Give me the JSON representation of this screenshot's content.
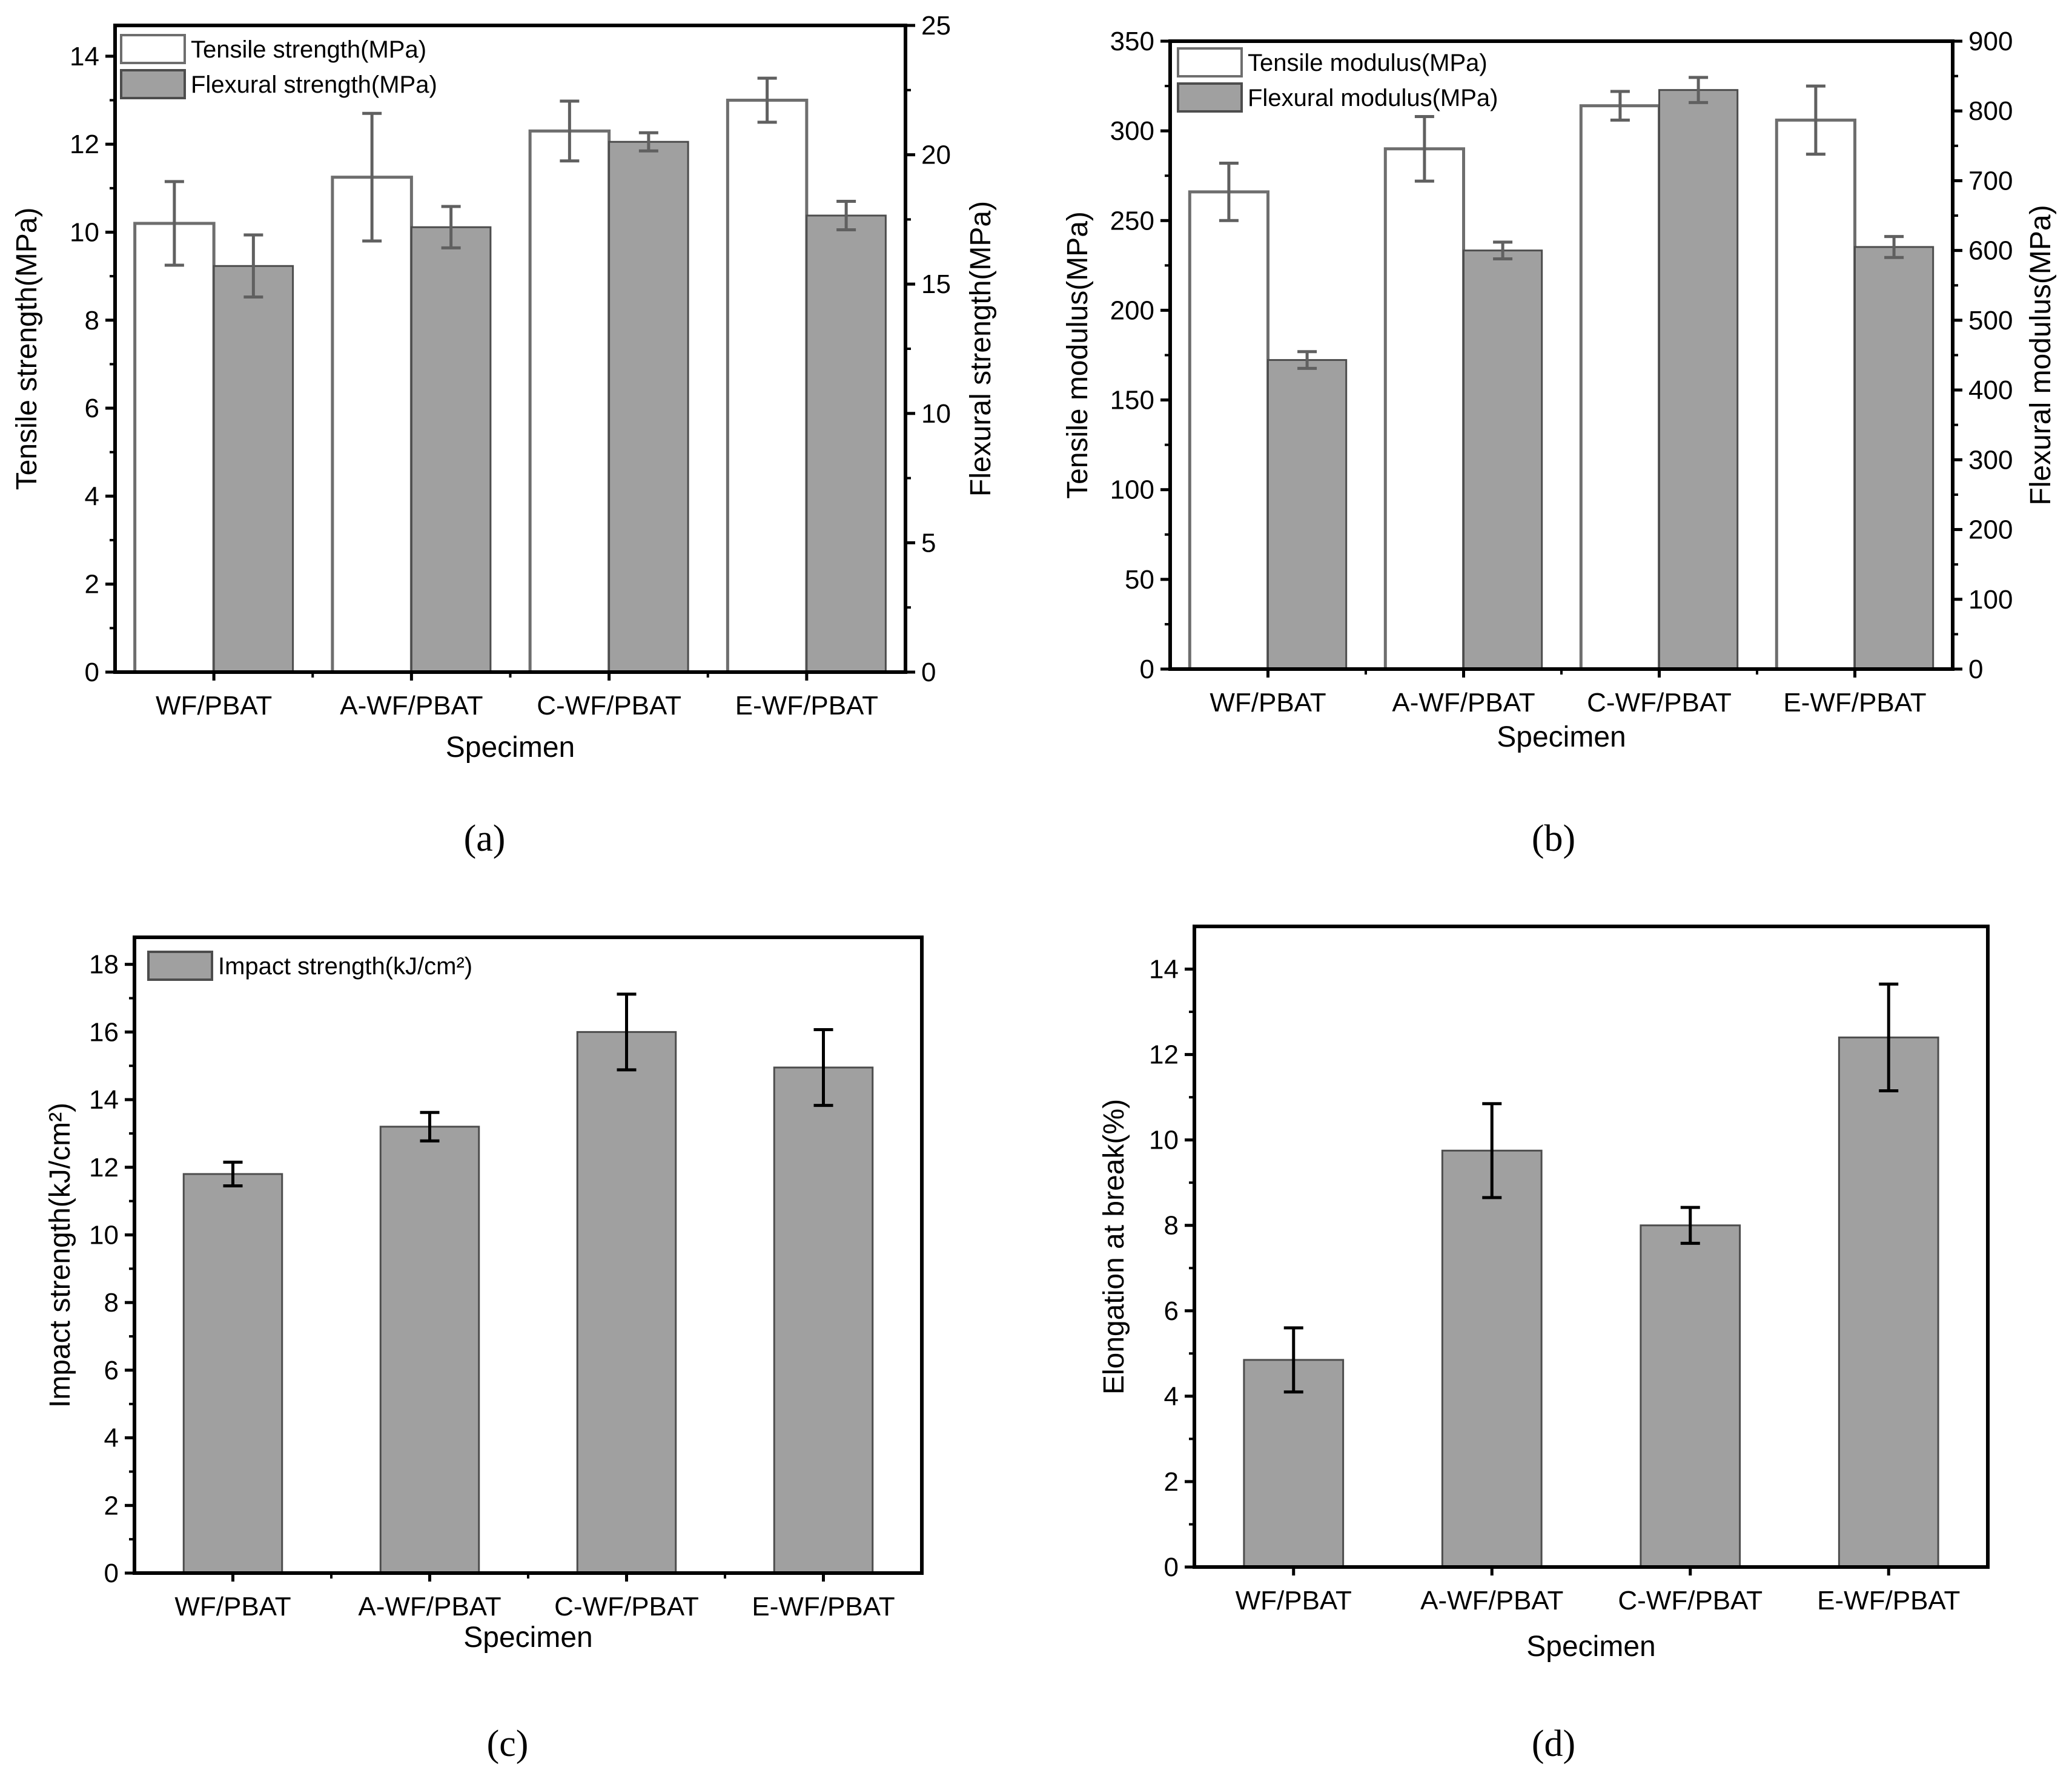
{
  "colors": {
    "filled_bar": "#a0a0a0",
    "outline_bar": "#ffffff",
    "bar_stroke": "#4d4d4d",
    "error_bar_gray": "#606060",
    "error_bar_black": "#000000",
    "axis": "#000000"
  },
  "chart_data": [
    {
      "id": "a",
      "type": "bar",
      "caption": "(a)",
      "xlabel": "Specimen",
      "ylabel": "Tensile strength(MPa)",
      "ylabel_right": "Flexural strength(MPa)",
      "categories": [
        "WF/PBAT",
        "A-WF/PBAT",
        "C-WF/PBAT",
        "E-WF/PBAT"
      ],
      "ylim": [
        0,
        14.7
      ],
      "ylim_right": [
        0,
        25
      ],
      "yticks": [
        0,
        2,
        4,
        6,
        8,
        10,
        12,
        14
      ],
      "yticks_right": [
        0,
        5,
        10,
        15,
        20,
        25
      ],
      "legend_position": "top-left",
      "series": [
        {
          "name": "Tensile strength(MPa)",
          "style": "outline",
          "axis": "left",
          "values": [
            10.2,
            11.25,
            12.3,
            13.0
          ],
          "errors": [
            0.95,
            1.45,
            0.68,
            0.5
          ]
        },
        {
          "name": "Flexural strength(MPa)",
          "style": "filled",
          "axis": "right",
          "values": [
            15.7,
            17.2,
            20.5,
            17.65
          ],
          "errors": [
            1.2,
            0.8,
            0.35,
            0.55
          ]
        }
      ]
    },
    {
      "id": "b",
      "type": "bar",
      "caption": "(b)",
      "xlabel": "Specimen",
      "ylabel": "Tensile modulus(MPa)",
      "ylabel_right": "Flexural modulus(MPa)",
      "categories": [
        "WF/PBAT",
        "A-WF/PBAT",
        "C-WF/PBAT",
        "E-WF/PBAT"
      ],
      "ylim": [
        0,
        350
      ],
      "ylim_right": [
        0,
        900
      ],
      "yticks": [
        0,
        50,
        100,
        150,
        200,
        250,
        300,
        350
      ],
      "yticks_right": [
        0,
        100,
        200,
        300,
        400,
        500,
        600,
        700,
        800,
        900
      ],
      "legend_position": "top-left",
      "series": [
        {
          "name": "Tensile modulus(MPa)",
          "style": "outline",
          "axis": "left",
          "values": [
            266,
            290,
            314,
            306
          ],
          "errors": [
            16,
            18,
            8,
            19
          ]
        },
        {
          "name": "Flexural modulus(MPa)",
          "style": "filled",
          "axis": "right",
          "values": [
            443,
            600,
            830,
            605
          ],
          "errors": [
            12,
            12,
            18,
            15
          ]
        }
      ]
    },
    {
      "id": "c",
      "type": "bar",
      "caption": "(c)",
      "xlabel": "Specimen",
      "ylabel": "Impact strength(kJ/cm²)",
      "categories": [
        "WF/PBAT",
        "A-WF/PBAT",
        "C-WF/PBAT",
        "E-WF/PBAT"
      ],
      "ylim": [
        0,
        18.8
      ],
      "yticks": [
        0,
        2,
        4,
        6,
        8,
        10,
        12,
        14,
        16,
        18
      ],
      "legend_position": "top-left",
      "series": [
        {
          "name": "Impact strength(kJ/cm²)",
          "style": "filled",
          "axis": "left",
          "values": [
            11.8,
            13.2,
            16.0,
            14.95
          ],
          "errors": [
            0.35,
            0.42,
            1.12,
            1.12
          ]
        }
      ]
    },
    {
      "id": "d",
      "type": "bar",
      "caption": "(d)",
      "xlabel": "Specimen",
      "ylabel": "Elongation at break(%)",
      "categories": [
        "WF/PBAT",
        "A-WF/PBAT",
        "C-WF/PBAT",
        "E-WF/PBAT"
      ],
      "ylim": [
        0,
        15
      ],
      "yticks": [
        0,
        2,
        4,
        6,
        8,
        10,
        12,
        14
      ],
      "series": [
        {
          "name": "Elongation at break(%)",
          "style": "filled",
          "axis": "left",
          "values": [
            4.85,
            9.75,
            8.0,
            12.4
          ],
          "errors": [
            0.75,
            1.1,
            0.42,
            1.25
          ]
        }
      ]
    }
  ]
}
